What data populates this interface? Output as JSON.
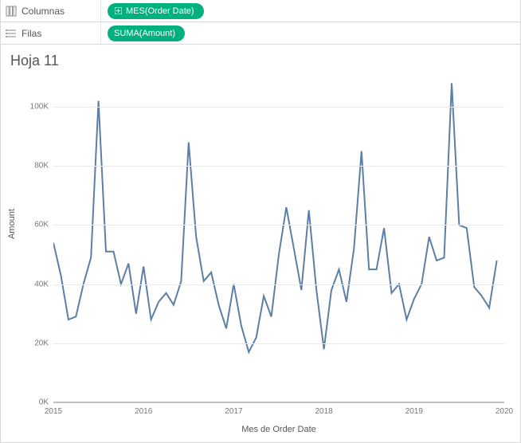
{
  "shelves": {
    "columns": {
      "label": "Columnas",
      "pill": {
        "label": "MES(Order Date)",
        "has_plus": true
      }
    },
    "rows": {
      "label": "Filas",
      "pill": {
        "label": "SUMA(Amount)",
        "has_plus": false
      }
    }
  },
  "sheet": {
    "title": "Hoja 11"
  },
  "chart": {
    "type": "line",
    "y_axis_title": "Amount",
    "x_axis_title": "Mes de Order Date",
    "line_color": "#5b7fa6",
    "background_color": "#ffffff",
    "grid_color": "#eceaea",
    "axis_color": "#bfbfbf",
    "ylim": [
      0,
      110000
    ],
    "y_ticks": [
      {
        "v": 0,
        "label": "0K"
      },
      {
        "v": 20000,
        "label": "20K"
      },
      {
        "v": 40000,
        "label": "40K"
      },
      {
        "v": 60000,
        "label": "60K"
      },
      {
        "v": 80000,
        "label": "80K"
      },
      {
        "v": 100000,
        "label": "100K"
      }
    ],
    "xlim": [
      0,
      60
    ],
    "x_ticks": [
      {
        "v": 0,
        "label": "2015"
      },
      {
        "v": 12,
        "label": "2016"
      },
      {
        "v": 24,
        "label": "2017"
      },
      {
        "v": 36,
        "label": "2018"
      },
      {
        "v": 48,
        "label": "2019"
      },
      {
        "v": 60,
        "label": "2020"
      }
    ],
    "series": [
      {
        "x": 0,
        "y": 54000
      },
      {
        "x": 1,
        "y": 43000
      },
      {
        "x": 2,
        "y": 28000
      },
      {
        "x": 3,
        "y": 29000
      },
      {
        "x": 4,
        "y": 40000
      },
      {
        "x": 5,
        "y": 49000
      },
      {
        "x": 6,
        "y": 102000
      },
      {
        "x": 7,
        "y": 51000
      },
      {
        "x": 8,
        "y": 51000
      },
      {
        "x": 9,
        "y": 40000
      },
      {
        "x": 10,
        "y": 47000
      },
      {
        "x": 11,
        "y": 30000
      },
      {
        "x": 12,
        "y": 46000
      },
      {
        "x": 13,
        "y": 28000
      },
      {
        "x": 14,
        "y": 34000
      },
      {
        "x": 15,
        "y": 37000
      },
      {
        "x": 16,
        "y": 33000
      },
      {
        "x": 17,
        "y": 41000
      },
      {
        "x": 18,
        "y": 88000
      },
      {
        "x": 19,
        "y": 56000
      },
      {
        "x": 20,
        "y": 41000
      },
      {
        "x": 21,
        "y": 44000
      },
      {
        "x": 22,
        "y": 33000
      },
      {
        "x": 23,
        "y": 25000
      },
      {
        "x": 24,
        "y": 40000
      },
      {
        "x": 25,
        "y": 26000
      },
      {
        "x": 26,
        "y": 17000
      },
      {
        "x": 27,
        "y": 22000
      },
      {
        "x": 28,
        "y": 36000
      },
      {
        "x": 29,
        "y": 29000
      },
      {
        "x": 30,
        "y": 50000
      },
      {
        "x": 31,
        "y": 66000
      },
      {
        "x": 32,
        "y": 52000
      },
      {
        "x": 33,
        "y": 38000
      },
      {
        "x": 34,
        "y": 65000
      },
      {
        "x": 35,
        "y": 38000
      },
      {
        "x": 36,
        "y": 18000
      },
      {
        "x": 37,
        "y": 38000
      },
      {
        "x": 38,
        "y": 45000
      },
      {
        "x": 39,
        "y": 34000
      },
      {
        "x": 40,
        "y": 52000
      },
      {
        "x": 41,
        "y": 85000
      },
      {
        "x": 42,
        "y": 45000
      },
      {
        "x": 43,
        "y": 45000
      },
      {
        "x": 44,
        "y": 59000
      },
      {
        "x": 45,
        "y": 37000
      },
      {
        "x": 46,
        "y": 40000
      },
      {
        "x": 47,
        "y": 28000
      },
      {
        "x": 48,
        "y": 35000
      },
      {
        "x": 49,
        "y": 40000
      },
      {
        "x": 50,
        "y": 56000
      },
      {
        "x": 51,
        "y": 48000
      },
      {
        "x": 52,
        "y": 49000
      },
      {
        "x": 53,
        "y": 108000
      },
      {
        "x": 54,
        "y": 60000
      },
      {
        "x": 55,
        "y": 59000
      },
      {
        "x": 56,
        "y": 39000
      },
      {
        "x": 57,
        "y": 36000
      },
      {
        "x": 58,
        "y": 32000
      },
      {
        "x": 59,
        "y": 48000
      }
    ]
  },
  "colors": {
    "pill_bg": "#00b180",
    "text": "#555555"
  }
}
